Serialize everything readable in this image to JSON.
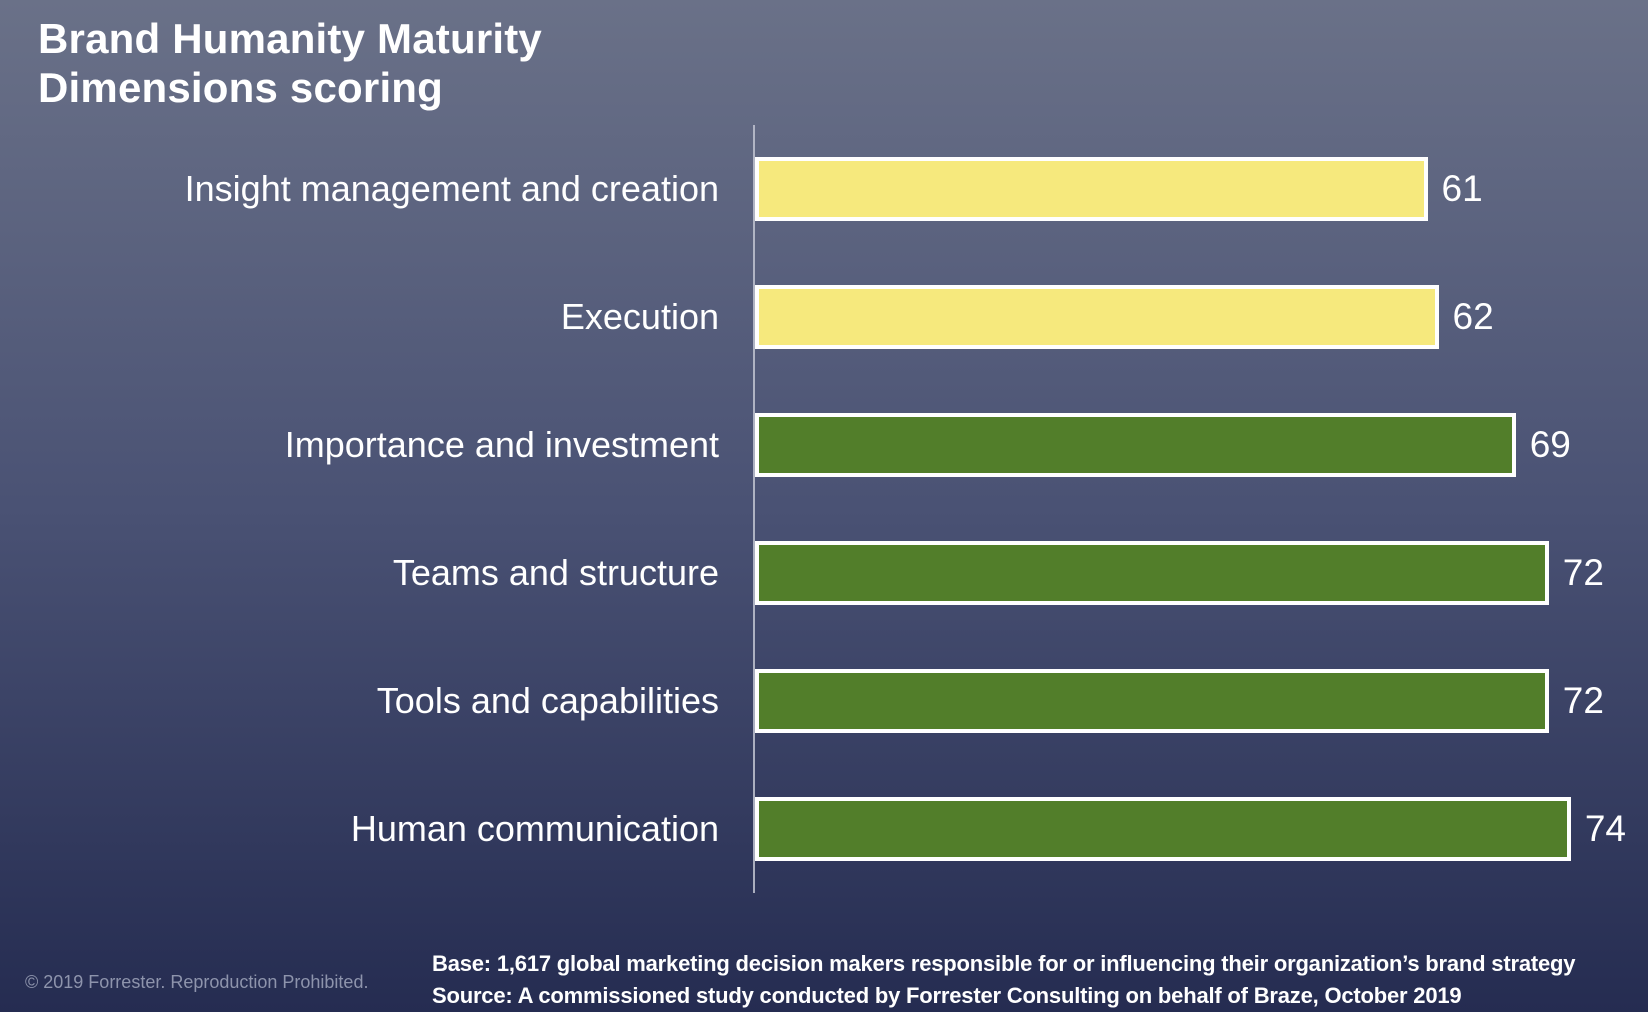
{
  "header": {
    "title_lines": [
      "Brand Humanity Maturity",
      "Dimensions scoring"
    ]
  },
  "footer": {
    "base_line": "Base: 1,617 global marketing decision makers responsible for or influencing their organization’s brand strategy",
    "source_line": "Source: A commissioned study conducted by Forrester Consulting on behalf of Braze, October 2019",
    "copyright": "© 2019 Forrester. Reproduction Prohibited."
  },
  "colors": {
    "background_top": "#6a7188",
    "background_mid": "#4a5274",
    "background_bottom": "#252c51",
    "bar_yellow": "#f6e97d",
    "bar_green": "#527e2a",
    "bar_border": "#ffffff",
    "axis_line": "#bfc3d0",
    "text_primary": "#ffffff",
    "text_muted": "#8e94ac"
  },
  "chart_data": {
    "type": "bar",
    "orientation": "horizontal",
    "title": "Brand Humanity Maturity Dimensions scoring",
    "categories": [
      "Insight management and creation",
      "Execution",
      "Importance and investment",
      "Teams and structure",
      "Tools and capabilities",
      "Human communication"
    ],
    "values": [
      61,
      62,
      69,
      72,
      72,
      74
    ],
    "bar_colors": [
      "#f6e97d",
      "#f6e97d",
      "#527e2a",
      "#527e2a",
      "#527e2a",
      "#527e2a"
    ],
    "value_labels": [
      "61",
      "62",
      "69",
      "72",
      "72",
      "74"
    ],
    "xlim": [
      0,
      81
    ],
    "xlabel": "",
    "ylabel": "",
    "grid": false,
    "legend": false,
    "value_label_position": "outside-right"
  }
}
